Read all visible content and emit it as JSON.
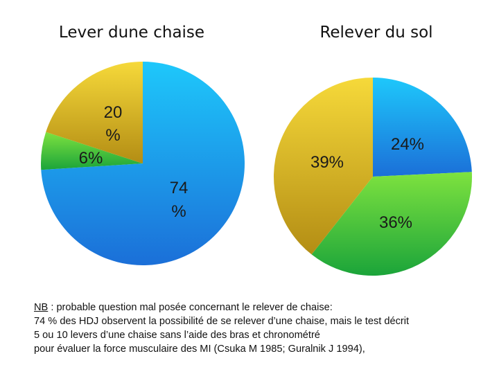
{
  "chart_data": [
    {
      "type": "pie",
      "title": "Lever dune chaise",
      "slices": [
        {
          "label": "74 %",
          "value": 74,
          "color": "#1f8fe6"
        },
        {
          "label": "6%",
          "value": 6,
          "color": "#2fb83a"
        },
        {
          "label": "20 %",
          "value": 20,
          "color": "#d2ae22"
        }
      ]
    },
    {
      "type": "pie",
      "title": "Relever du sol",
      "slices": [
        {
          "label": "24%",
          "value": 24,
          "color": "#1f8fe6"
        },
        {
          "label": "36%",
          "value": 36,
          "color": "#2fb83a"
        },
        {
          "label": "39%",
          "value": 39,
          "color": "#d2ae22"
        }
      ]
    }
  ],
  "note": {
    "nb": "NB",
    "line1": " : probable question mal posée concernant le relever de chaise:",
    "line2": "74 % des HDJ observent la possibilité de se relever d’une chaise, mais le test décrit",
    "line3": "5 ou 10 levers d’une chaise sans l’aide des bras et chronométré",
    "line4": "pour évaluer la force musculaire des MI (Csuka M 1985; Guralnik J 1994),"
  }
}
